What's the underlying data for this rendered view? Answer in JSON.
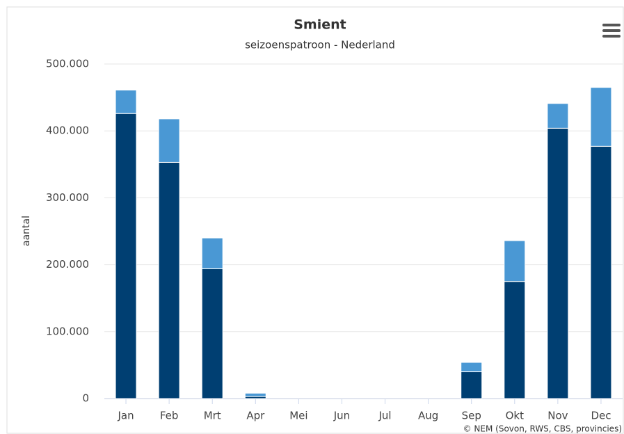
{
  "chart_data": {
    "type": "stacked_bar",
    "title": "Smient",
    "subtitle": "seizoenspatroon - Nederland",
    "y_label": "aantal",
    "credits": "© NEM (Sovon, RWS, CBS, provincies)",
    "categories": [
      "Jan",
      "Feb",
      "Mrt",
      "Apr",
      "Mei",
      "Jun",
      "Jul",
      "Aug",
      "Sep",
      "Okt",
      "Nov",
      "Dec"
    ],
    "series": [
      {
        "color": "#003f72",
        "values": [
          426000,
          353000,
          194000,
          3000,
          0,
          0,
          0,
          0,
          40000,
          175000,
          404000,
          377000
        ]
      },
      {
        "color": "#4a98d4",
        "values": [
          35000,
          65000,
          46000,
          5000,
          0,
          0,
          0,
          0,
          14000,
          61000,
          37000,
          88000
        ]
      }
    ],
    "ylim": [
      0,
      500000
    ],
    "yticks": [
      0,
      {
        "value": 100000,
        "label": "100.000"
      },
      {
        "value": 200000,
        "label": "200.000"
      },
      {
        "value": 300000,
        "label": "300.000"
      },
      {
        "value": 400000,
        "label": "400.000"
      },
      {
        "value": 500000,
        "label": "500.000"
      }
    ],
    "grid": true
  }
}
